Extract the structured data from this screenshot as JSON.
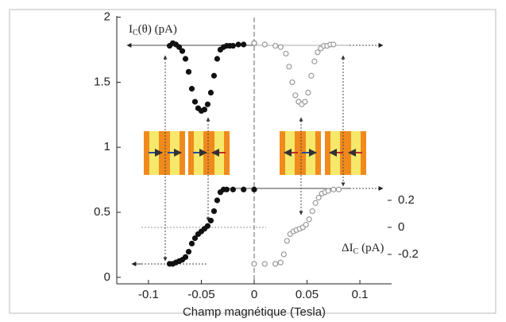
{
  "chart_data": {
    "type": "scatter",
    "xlabel": "Champ magnétique (Tesla)",
    "annotations": {
      "top": {
        "main": "I",
        "sub": "C",
        "rest": "(θ)  (pA)"
      },
      "bottom": {
        "main": "ΔI",
        "sub": "C",
        "rest": " (pA)"
      }
    },
    "xlim": [
      -0.13,
      0.13
    ],
    "xticks": [
      -0.1,
      -0.05,
      0,
      0.05,
      0.1
    ],
    "ylim": [
      -0.05,
      2.01
    ],
    "yticks": [
      0,
      0.5,
      1,
      1.5,
      2
    ],
    "y2lim": [
      -0.418,
      1.565
    ],
    "y2ticks": [
      -0.2,
      0,
      0.2
    ],
    "series": [
      {
        "color": "#111111",
        "marker": "filled",
        "x": [
          -0.08,
          -0.077,
          -0.074,
          -0.071,
          -0.068,
          -0.065,
          -0.062,
          -0.059,
          -0.056,
          -0.053,
          -0.05,
          -0.047,
          -0.044,
          -0.041,
          -0.038,
          -0.035,
          -0.032,
          -0.029,
          -0.026,
          -0.023,
          -0.02,
          -0.015,
          -0.01,
          0
        ],
        "values": [
          1.78,
          1.8,
          1.79,
          1.77,
          1.74,
          1.68,
          1.58,
          1.45,
          1.35,
          1.3,
          1.28,
          1.29,
          1.33,
          1.42,
          1.55,
          1.68,
          1.75,
          1.77,
          1.78,
          1.78,
          1.78,
          1.79,
          1.79,
          1.8
        ]
      },
      {
        "color": "#999999",
        "marker": "open",
        "x": [
          0,
          0.01,
          0.02,
          0.025,
          0.03,
          0.033,
          0.036,
          0.039,
          0.042,
          0.045,
          0.048,
          0.051,
          0.054,
          0.057,
          0.06,
          0.063,
          0.066,
          0.069,
          0.072,
          0.075
        ],
        "values": [
          1.8,
          1.79,
          1.78,
          1.77,
          1.72,
          1.62,
          1.5,
          1.4,
          1.35,
          1.33,
          1.35,
          1.42,
          1.55,
          1.66,
          1.73,
          1.76,
          1.78,
          1.78,
          1.79,
          1.79
        ]
      },
      {
        "color": "#111111",
        "marker": "filled",
        "axis": "y2",
        "x": [
          -0.08,
          -0.077,
          -0.074,
          -0.071,
          -0.068,
          -0.065,
          -0.062,
          -0.059,
          -0.056,
          -0.053,
          -0.05,
          -0.047,
          -0.044,
          -0.041,
          -0.038,
          -0.035,
          -0.032,
          -0.029,
          -0.026,
          -0.02,
          -0.01,
          0
        ],
        "values": [
          -0.27,
          -0.27,
          -0.26,
          -0.25,
          -0.24,
          -0.22,
          -0.18,
          -0.12,
          -0.08,
          -0.05,
          -0.03,
          -0.01,
          0.01,
          0.05,
          0.12,
          0.2,
          0.26,
          0.28,
          0.28,
          0.28,
          0.28,
          0.28
        ]
      },
      {
        "color": "#999999",
        "marker": "open",
        "axis": "y2",
        "x": [
          0,
          0.01,
          0.02,
          0.025,
          0.028,
          0.031,
          0.034,
          0.037,
          0.04,
          0.043,
          0.046,
          0.049,
          0.052,
          0.055,
          0.058,
          0.061,
          0.064,
          0.067,
          0.07,
          0.075,
          0.08
        ],
        "values": [
          -0.27,
          -0.27,
          -0.27,
          -0.26,
          -0.2,
          -0.1,
          -0.05,
          -0.03,
          -0.02,
          -0.01,
          0,
          0.02,
          0.06,
          0.12,
          0.18,
          0.22,
          0.25,
          0.26,
          0.27,
          0.28,
          0.28
        ]
      }
    ]
  }
}
